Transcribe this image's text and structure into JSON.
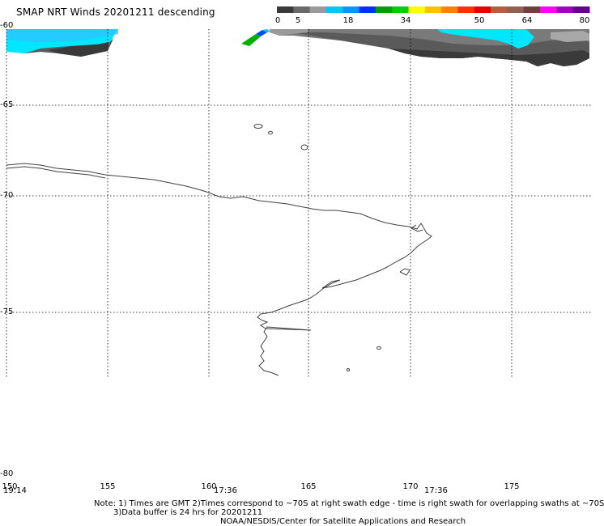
{
  "title": "SMAP NRT Winds  20201211  descending",
  "colorbar": {
    "tick_labels": [
      "0",
      "5",
      "18",
      "34",
      "50",
      "64",
      "80"
    ],
    "colors": [
      "#3a3a3a",
      "#6a6a6a",
      "#9a9a9a",
      "#00c8f0",
      "#0098ff",
      "#0030ff",
      "#00a000",
      "#00d000",
      "#ffff00",
      "#ffc000",
      "#ff8000",
      "#ff3000",
      "#e80000",
      "#b06040",
      "#906050",
      "#704040",
      "#ff00ff",
      "#a000c0",
      "#600090"
    ]
  },
  "map": {
    "lat_labels": [
      "-60",
      "-65",
      "-70",
      "-75",
      "-80"
    ],
    "lon_labels": [
      "150",
      "155",
      "160",
      "165",
      "170",
      "175"
    ],
    "time_labels": [
      "19:14",
      "17:36",
      "17:36"
    ],
    "coast_color": "#404040",
    "swath_low_color": "#00e6ff",
    "grid_color": "#000000"
  },
  "notes": {
    "line1": "Note: 1) Times are GMT 2)Times correspond to ~70S at right swath edge - time is right swath for overlapping swaths at ~70S",
    "line2": "3)Data buffer is 24 hrs for 20201211",
    "line3": "NOAA/NESDIS/Center for Satellite Applications and Research"
  }
}
